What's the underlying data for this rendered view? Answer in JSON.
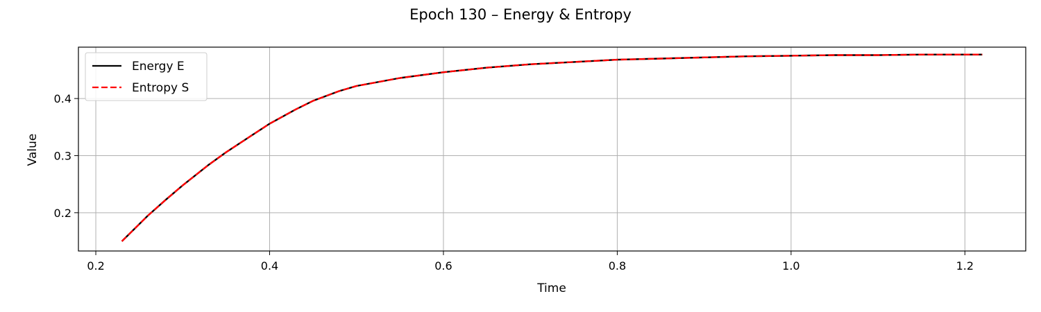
{
  "chart_data": {
    "type": "line",
    "title": "Epoch 130 – Energy & Entropy",
    "xlabel": "Time",
    "ylabel": "Value",
    "xlim": [
      0.18,
      1.27
    ],
    "ylim": [
      0.133,
      0.49
    ],
    "xticks": [
      0.2,
      0.4,
      0.6,
      0.8,
      1.0,
      1.2
    ],
    "xtick_labels": [
      "0.2",
      "0.4",
      "0.6",
      "0.8",
      "1.0",
      "1.2"
    ],
    "yticks": [
      0.2,
      0.3,
      0.4
    ],
    "ytick_labels": [
      "0.2",
      "0.3",
      "0.4"
    ],
    "grid": true,
    "legend_position": "top-left",
    "x": [
      0.23,
      0.26,
      0.28,
      0.3,
      0.33,
      0.35,
      0.38,
      0.4,
      0.43,
      0.45,
      0.48,
      0.5,
      0.55,
      0.6,
      0.65,
      0.7,
      0.75,
      0.8,
      0.85,
      0.9,
      0.95,
      1.0,
      1.05,
      1.1,
      1.15,
      1.22
    ],
    "series": [
      {
        "name": "Energy E",
        "color": "#000000",
        "style": "solid",
        "values": [
          0.15,
          0.195,
          0.222,
          0.248,
          0.284,
          0.306,
          0.336,
          0.356,
          0.381,
          0.396,
          0.413,
          0.422,
          0.436,
          0.446,
          0.454,
          0.46,
          0.464,
          0.468,
          0.47,
          0.472,
          0.474,
          0.475,
          0.476,
          0.476,
          0.477,
          0.477
        ]
      },
      {
        "name": "Entropy S",
        "color": "#ff0000",
        "style": "dashed",
        "values": [
          0.15,
          0.195,
          0.222,
          0.248,
          0.284,
          0.306,
          0.336,
          0.356,
          0.381,
          0.396,
          0.413,
          0.422,
          0.436,
          0.446,
          0.454,
          0.46,
          0.464,
          0.468,
          0.47,
          0.472,
          0.474,
          0.475,
          0.476,
          0.476,
          0.477,
          0.477
        ]
      }
    ]
  }
}
